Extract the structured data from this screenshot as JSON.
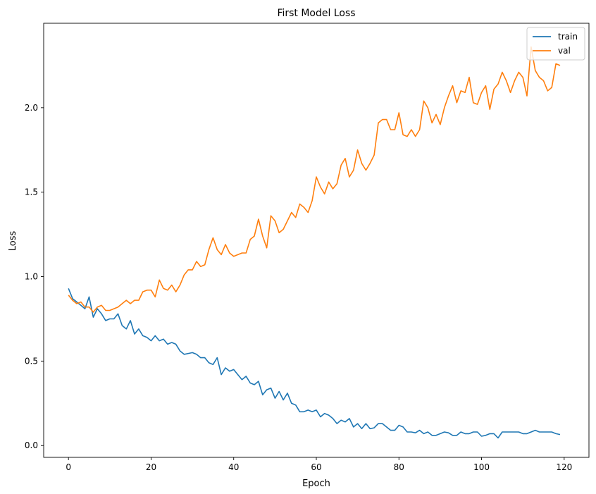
{
  "chart_data": {
    "type": "line",
    "title": "First Model Loss",
    "xlabel": "Epoch",
    "ylabel": "Loss",
    "xlim": [
      -6,
      126
    ],
    "ylim": [
      -0.07,
      2.5
    ],
    "xticks": [
      0,
      20,
      40,
      60,
      80,
      100,
      120
    ],
    "yticks": [
      0.0,
      0.5,
      1.0,
      1.5,
      2.0
    ],
    "ytick_labels": [
      "0.0",
      "0.5",
      "1.0",
      "1.5",
      "2.0"
    ],
    "grid": false,
    "legend_position": "top-right",
    "x": [
      0,
      1,
      2,
      3,
      4,
      5,
      6,
      7,
      8,
      9,
      10,
      11,
      12,
      13,
      14,
      15,
      16,
      17,
      18,
      19,
      20,
      21,
      22,
      23,
      24,
      25,
      26,
      27,
      28,
      29,
      30,
      31,
      32,
      33,
      34,
      35,
      36,
      37,
      38,
      39,
      40,
      41,
      42,
      43,
      44,
      45,
      46,
      47,
      48,
      49,
      50,
      51,
      52,
      53,
      54,
      55,
      56,
      57,
      58,
      59,
      60,
      61,
      62,
      63,
      64,
      65,
      66,
      67,
      68,
      69,
      70,
      71,
      72,
      73,
      74,
      75,
      76,
      77,
      78,
      79,
      80,
      81,
      82,
      83,
      84,
      85,
      86,
      87,
      88,
      89,
      90,
      91,
      92,
      93,
      94,
      95,
      96,
      97,
      98,
      99,
      100,
      101,
      102,
      103,
      104,
      105,
      106,
      107,
      108,
      109,
      110,
      111,
      112,
      113,
      114,
      115,
      116,
      117,
      118,
      119
    ],
    "series": [
      {
        "name": "train",
        "color": "#1f77b4",
        "values": [
          0.93,
          0.87,
          0.85,
          0.83,
          0.81,
          0.88,
          0.76,
          0.81,
          0.78,
          0.74,
          0.75,
          0.75,
          0.78,
          0.71,
          0.69,
          0.74,
          0.66,
          0.69,
          0.65,
          0.64,
          0.62,
          0.65,
          0.62,
          0.63,
          0.6,
          0.61,
          0.6,
          0.56,
          0.54,
          0.545,
          0.55,
          0.54,
          0.52,
          0.52,
          0.49,
          0.48,
          0.52,
          0.42,
          0.46,
          0.44,
          0.45,
          0.42,
          0.39,
          0.41,
          0.37,
          0.36,
          0.38,
          0.3,
          0.33,
          0.34,
          0.28,
          0.32,
          0.27,
          0.31,
          0.25,
          0.24,
          0.2,
          0.2,
          0.21,
          0.2,
          0.21,
          0.17,
          0.19,
          0.18,
          0.16,
          0.13,
          0.15,
          0.14,
          0.16,
          0.11,
          0.13,
          0.1,
          0.13,
          0.1,
          0.105,
          0.13,
          0.13,
          0.11,
          0.09,
          0.09,
          0.12,
          0.11,
          0.08,
          0.08,
          0.075,
          0.09,
          0.07,
          0.08,
          0.06,
          0.06,
          0.07,
          0.08,
          0.075,
          0.06,
          0.06,
          0.08,
          0.07,
          0.07,
          0.08,
          0.08,
          0.055,
          0.06,
          0.07,
          0.07,
          0.045,
          0.08,
          0.08,
          0.08,
          0.08,
          0.08,
          0.07,
          0.07,
          0.08,
          0.09,
          0.08,
          0.08,
          0.08,
          0.08,
          0.07,
          0.065
        ]
      },
      {
        "name": "val",
        "color": "#ff7f0e",
        "values": [
          0.89,
          0.86,
          0.84,
          0.85,
          0.82,
          0.82,
          0.79,
          0.82,
          0.83,
          0.8,
          0.8,
          0.81,
          0.82,
          0.84,
          0.86,
          0.84,
          0.86,
          0.86,
          0.91,
          0.92,
          0.92,
          0.88,
          0.98,
          0.93,
          0.92,
          0.95,
          0.91,
          0.95,
          1.01,
          1.04,
          1.04,
          1.09,
          1.06,
          1.07,
          1.16,
          1.23,
          1.16,
          1.13,
          1.19,
          1.14,
          1.12,
          1.13,
          1.14,
          1.14,
          1.22,
          1.24,
          1.34,
          1.24,
          1.17,
          1.36,
          1.33,
          1.26,
          1.28,
          1.33,
          1.38,
          1.35,
          1.43,
          1.41,
          1.38,
          1.45,
          1.59,
          1.53,
          1.49,
          1.56,
          1.52,
          1.55,
          1.66,
          1.7,
          1.59,
          1.63,
          1.75,
          1.67,
          1.63,
          1.67,
          1.72,
          1.91,
          1.93,
          1.93,
          1.87,
          1.87,
          1.97,
          1.84,
          1.83,
          1.87,
          1.83,
          1.87,
          2.04,
          2.0,
          1.91,
          1.96,
          1.9,
          2.0,
          2.07,
          2.13,
          2.03,
          2.1,
          2.09,
          2.18,
          2.03,
          2.02,
          2.09,
          2.13,
          1.99,
          2.11,
          2.14,
          2.21,
          2.16,
          2.09,
          2.16,
          2.21,
          2.18,
          2.07,
          2.36,
          2.22,
          2.18,
          2.16,
          2.1,
          2.12,
          2.26,
          2.25
        ]
      }
    ]
  }
}
